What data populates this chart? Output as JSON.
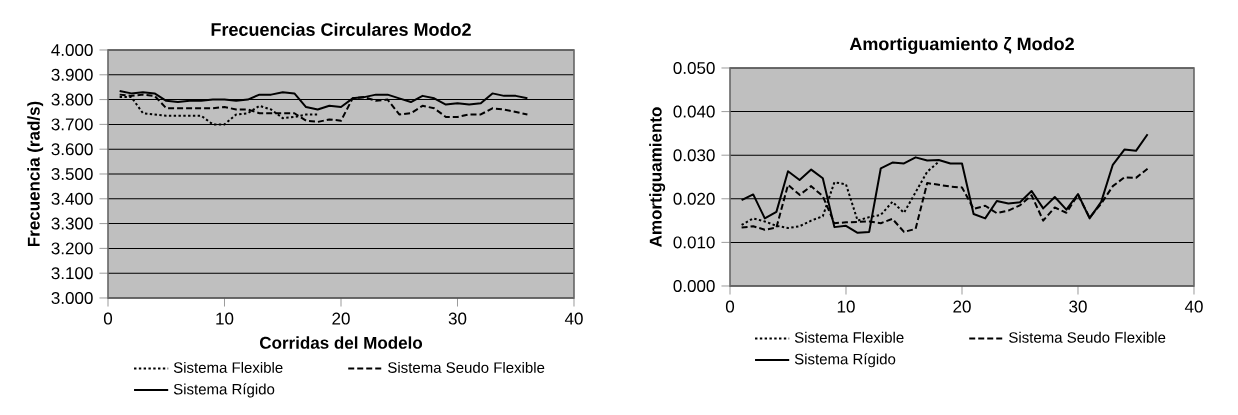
{
  "chart_data": [
    {
      "type": "line",
      "title": "Frecuencias Circulares Modo2",
      "xlabel": "Corridas del Modelo",
      "ylabel": "Frecuencia (rad/s)",
      "x": [
        1,
        2,
        3,
        4,
        5,
        6,
        7,
        8,
        9,
        10,
        11,
        12,
        13,
        14,
        15,
        16,
        17,
        18,
        19,
        20,
        21,
        22,
        23,
        24,
        25,
        26,
        27,
        28,
        29,
        30,
        31,
        32,
        33,
        34,
        35,
        36
      ],
      "series": [
        {
          "name": "Sistema Flexible",
          "color": "#000000",
          "line_style": "dotted",
          "values": [
            3.81,
            3.81,
            3.745,
            3.74,
            3.735,
            3.735,
            3.735,
            3.735,
            3.7,
            3.7,
            3.74,
            3.745,
            3.775,
            3.76,
            3.725,
            3.73,
            3.74,
            3.74,
            null,
            null,
            null,
            null,
            null,
            null,
            null,
            null,
            null,
            null,
            null,
            null,
            null,
            null,
            null,
            null,
            null,
            null
          ]
        },
        {
          "name": "Sistema Seudo Flexible",
          "color": "#000000",
          "line_style": "dashed",
          "values": [
            3.82,
            3.815,
            3.82,
            3.815,
            3.765,
            3.765,
            3.765,
            3.765,
            3.765,
            3.77,
            3.76,
            3.76,
            3.745,
            3.745,
            3.745,
            3.745,
            3.715,
            3.71,
            3.72,
            3.715,
            3.805,
            3.81,
            3.795,
            3.8,
            3.74,
            3.745,
            3.775,
            3.765,
            3.73,
            3.73,
            3.74,
            3.74,
            3.765,
            3.76,
            3.75,
            3.74
          ]
        },
        {
          "name": "Sistema Rígido",
          "color": "#000000",
          "line_style": "solid",
          "values": [
            3.835,
            3.825,
            3.83,
            3.825,
            3.795,
            3.79,
            3.795,
            3.795,
            3.8,
            3.8,
            3.795,
            3.8,
            3.82,
            3.82,
            3.83,
            3.825,
            3.77,
            3.76,
            3.775,
            3.77,
            3.805,
            3.81,
            3.82,
            3.82,
            3.805,
            3.79,
            3.815,
            3.805,
            3.78,
            3.785,
            3.78,
            3.785,
            3.825,
            3.815,
            3.815,
            3.805
          ]
        }
      ],
      "xlim": [
        0,
        40
      ],
      "xticks": [
        0,
        10,
        20,
        30,
        40
      ],
      "ylim": [
        3,
        4
      ],
      "yticks": [
        {
          "value": 3,
          "label": "3.000"
        },
        {
          "value": 3.1,
          "label": "3.100"
        },
        {
          "value": 3.2,
          "label": "3.200"
        },
        {
          "value": 3.3,
          "label": "3.300"
        },
        {
          "value": 3.4,
          "label": "3.400"
        },
        {
          "value": 3.5,
          "label": "3.500"
        },
        {
          "value": 3.6,
          "label": "3.600"
        },
        {
          "value": 3.7,
          "label": "3.700"
        },
        {
          "value": 3.8,
          "label": "3.800"
        },
        {
          "value": 3.9,
          "label": "3.900"
        },
        {
          "value": 4,
          "label": "4.000"
        }
      ],
      "grid": "y",
      "legend": "bottom",
      "marker": "none"
    },
    {
      "type": "line",
      "title": "Amortiguamiento ζ Modo2",
      "ylabel": "Amortiguamiento",
      "x": [
        1,
        2,
        3,
        4,
        5,
        6,
        7,
        8,
        9,
        10,
        11,
        12,
        13,
        14,
        15,
        16,
        17,
        18,
        19,
        20,
        21,
        22,
        23,
        24,
        25,
        26,
        27,
        28,
        29,
        30,
        31,
        32,
        33,
        34,
        35,
        36
      ],
      "series": [
        {
          "name": "Sistema Flexible",
          "color": "#000000",
          "line_style": "dotted",
          "values": [
            0.014,
            0.0155,
            0.0148,
            0.0138,
            0.0133,
            0.0137,
            0.015,
            0.016,
            0.0238,
            0.0233,
            0.015,
            0.0158,
            0.0163,
            0.0193,
            0.0168,
            0.0215,
            0.0262,
            0.0285,
            null,
            null,
            null,
            null,
            null,
            null,
            null,
            null,
            null,
            null,
            null,
            null,
            null,
            null,
            null,
            null,
            null,
            null
          ]
        },
        {
          "name": "Sistema Seudo Flexible",
          "color": "#000000",
          "line_style": "dashed",
          "values": [
            0.0134,
            0.0137,
            0.0129,
            0.0134,
            0.0232,
            0.0209,
            0.0229,
            0.0206,
            0.0144,
            0.0146,
            0.0147,
            0.0148,
            0.0144,
            0.0154,
            0.0124,
            0.0131,
            0.0236,
            0.0232,
            0.0228,
            0.0226,
            0.0177,
            0.0184,
            0.0167,
            0.0173,
            0.0185,
            0.0208,
            0.015,
            0.018,
            0.0168,
            0.0209,
            0.0157,
            0.0189,
            0.0229,
            0.0249,
            0.0248,
            0.0269
          ]
        },
        {
          "name": "Sistema Rígido",
          "color": "#000000",
          "line_style": "solid",
          "values": [
            0.0197,
            0.021,
            0.0155,
            0.017,
            0.0263,
            0.0243,
            0.0267,
            0.0247,
            0.0135,
            0.0138,
            0.0122,
            0.0124,
            0.027,
            0.0283,
            0.0281,
            0.0295,
            0.0288,
            0.0289,
            0.0281,
            0.0281,
            0.0165,
            0.0155,
            0.0195,
            0.0189,
            0.0192,
            0.0218,
            0.0178,
            0.0204,
            0.0175,
            0.0211,
            0.0155,
            0.0193,
            0.0278,
            0.0313,
            0.031,
            0.0348
          ]
        }
      ],
      "xlim": [
        0,
        40
      ],
      "xticks": [
        0,
        10,
        20,
        30,
        40
      ],
      "ylim": [
        0,
        0.05
      ],
      "yticks": [
        {
          "value": 0,
          "label": "0.000"
        },
        {
          "value": 0.01,
          "label": "0.010"
        },
        {
          "value": 0.02,
          "label": "0.020"
        },
        {
          "value": 0.03,
          "label": "0.030"
        },
        {
          "value": 0.04,
          "label": "0.040"
        },
        {
          "value": 0.05,
          "label": "0.050"
        }
      ],
      "grid": "y",
      "legend": "bottom",
      "marker": "none"
    }
  ]
}
